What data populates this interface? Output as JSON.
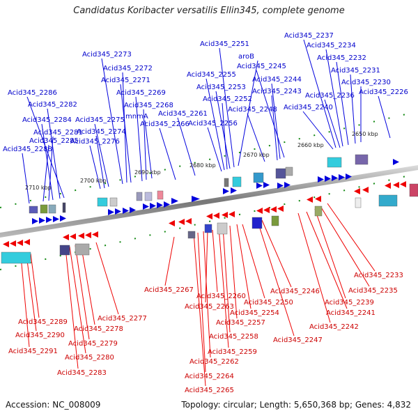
{
  "title": "Candidatus Koribacter versatilis Ellin345, complete genome",
  "footer": {
    "accession": "Accession: NC_008009",
    "topology": "Topology: circular; Length: 5,650,368 bp; Genes: 4,832"
  },
  "colors": {
    "forward_strand": "#0000dd",
    "reverse_strand": "#ee0000",
    "tick": "#118811",
    "backbone": "#888888"
  },
  "ticks": [
    "2650 kbp",
    "2660 kbp",
    "2670 kbp",
    "2680 kbp",
    "2690 kbp",
    "2700 kbp",
    "2710 kbp"
  ],
  "top_labels": [
    "Acid345_2237",
    "Acid345_2234",
    "Acid345_2232",
    "Acid345_2231",
    "Acid345_2230",
    "Acid345_2226",
    "Acid345_2236",
    "Acid345_2240",
    "Acid345_2251",
    "aroB",
    "Acid345_2245",
    "Acid345_2244",
    "Acid345_2243",
    "Acid345_2255",
    "Acid345_2253",
    "Acid345_2252",
    "Acid345_2248",
    "Acid345_2256",
    "Acid345_2261",
    "Acid345_2266",
    "Acid345_2273",
    "Acid345_2272",
    "Acid345_2271",
    "Acid345_2269",
    "Acid345_2268",
    "mnmA",
    "Acid345_2275",
    "Acid345_2274",
    "Acid345_2276",
    "Acid345_2286",
    "Acid345_2282",
    "Acid345_2284",
    "Acid345_2281",
    "Acid345_2285",
    "Acid345_2288"
  ],
  "bottom_labels": [
    "Acid345_2233",
    "Acid345_2235",
    "Acid345_2239",
    "Acid345_2241",
    "Acid345_2242",
    "Acid345_2246",
    "Acid345_2247",
    "Acid345_2250",
    "Acid345_2254",
    "Acid345_2257",
    "Acid345_2258",
    "Acid345_2259",
    "Acid345_2260",
    "Acid345_2263",
    "Acid345_2262",
    "Acid345_2264",
    "Acid345_2265",
    "Acid345_2267",
    "Acid345_2277",
    "Acid345_2278",
    "Acid345_2279",
    "Acid345_2280",
    "Acid345_2283",
    "Acid345_2289",
    "Acid345_2290",
    "Acid345_2291"
  ]
}
